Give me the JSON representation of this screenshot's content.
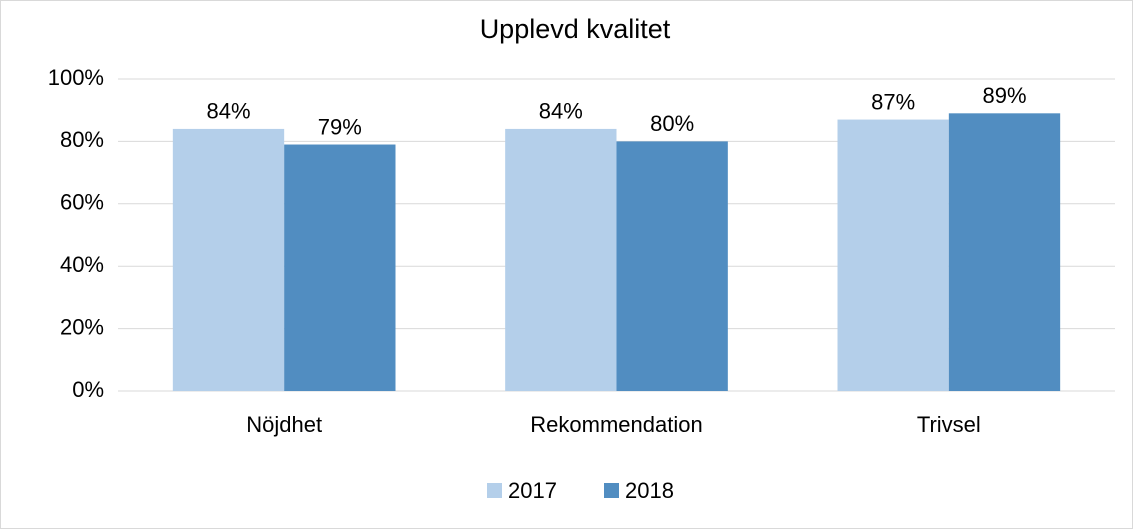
{
  "chart_data": {
    "type": "bar",
    "title": "Upplevd kvalitet",
    "categories": [
      "Nöjdhet",
      "Rekommendation",
      "Trivsel"
    ],
    "series": [
      {
        "name": "2017",
        "color": "#b4cfea",
        "values": [
          84,
          84,
          87
        ],
        "value_labels": [
          "84%",
          "84%",
          "87%"
        ]
      },
      {
        "name": "2018",
        "color": "#518dc1",
        "values": [
          79,
          80,
          89
        ],
        "value_labels": [
          "79%",
          "80%",
          "89%"
        ]
      }
    ],
    "ylim": [
      0,
      100
    ],
    "yticks": [
      {
        "value": 0,
        "label": "0%"
      },
      {
        "value": 20,
        "label": "20%"
      },
      {
        "value": 40,
        "label": "40%"
      },
      {
        "value": 60,
        "label": "60%"
      },
      {
        "value": 80,
        "label": "80%"
      },
      {
        "value": 100,
        "label": "100%"
      }
    ],
    "grid": true,
    "legend": "bottom"
  }
}
